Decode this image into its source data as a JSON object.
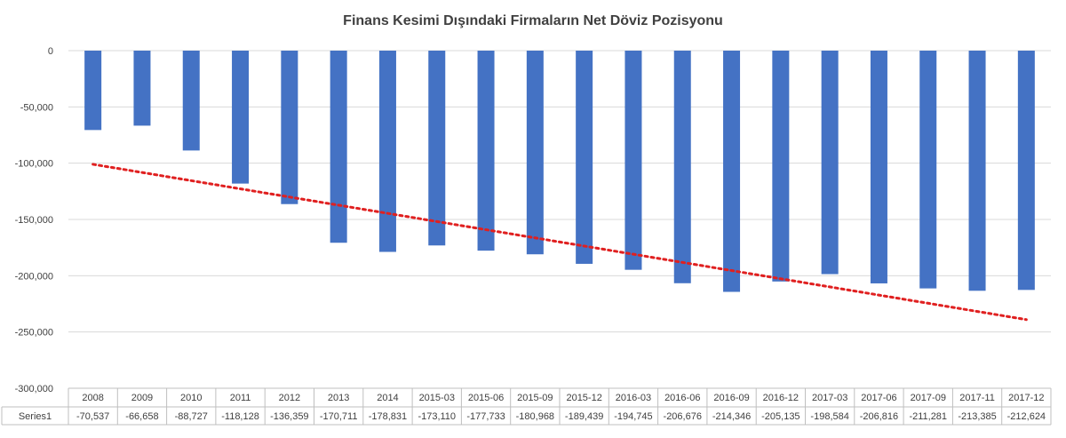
{
  "chart_data": {
    "type": "bar",
    "title": "Finans Kesimi Dışındaki Firmaların Net Döviz Pozisyonu",
    "xlabel": "",
    "ylabel": "",
    "ylim": [
      -300000,
      0
    ],
    "yticks": [
      0,
      -50000,
      -100000,
      -150000,
      -200000,
      -250000,
      -300000
    ],
    "ytick_labels": [
      "0",
      "-50,000",
      "-100,000",
      "-150,000",
      "-200,000",
      "-250,000",
      "-300,000"
    ],
    "grid": true,
    "categories": [
      "2008",
      "2009",
      "2010",
      "2011",
      "2012",
      "2013",
      "2014",
      "2015-03",
      "2015-06",
      "2015-09",
      "2015-12",
      "2016-03",
      "2016-06",
      "2016-09",
      "2016-12",
      "2017-03",
      "2017-06",
      "2017-09",
      "2017-11",
      "2017-12"
    ],
    "series": [
      {
        "name": "Series1",
        "values": [
          -70537,
          -66658,
          -88727,
          -118128,
          -136359,
          -170711,
          -178831,
          -173110,
          -177733,
          -180968,
          -189439,
          -194745,
          -206676,
          -214346,
          -205135,
          -198584,
          -206816,
          -211281,
          -213385,
          -212624
        ],
        "value_labels": [
          "-70,537",
          "-66,658",
          "-88,727",
          "-118,128",
          "-136,359",
          "-170,711",
          "-178,831",
          "-173,110",
          "-177,733",
          "-180,968",
          "-189,439",
          "-194,745",
          "-206,676",
          "-214,346",
          "-205,135",
          "-198,584",
          "-206,816",
          "-211,281",
          "-213,385",
          "-212,624"
        ],
        "color": "#4472c4"
      }
    ],
    "trendline": {
      "type": "linear",
      "style": "dotted",
      "color": "#e02020",
      "start": -101000,
      "end": -239000
    },
    "data_table": true
  }
}
